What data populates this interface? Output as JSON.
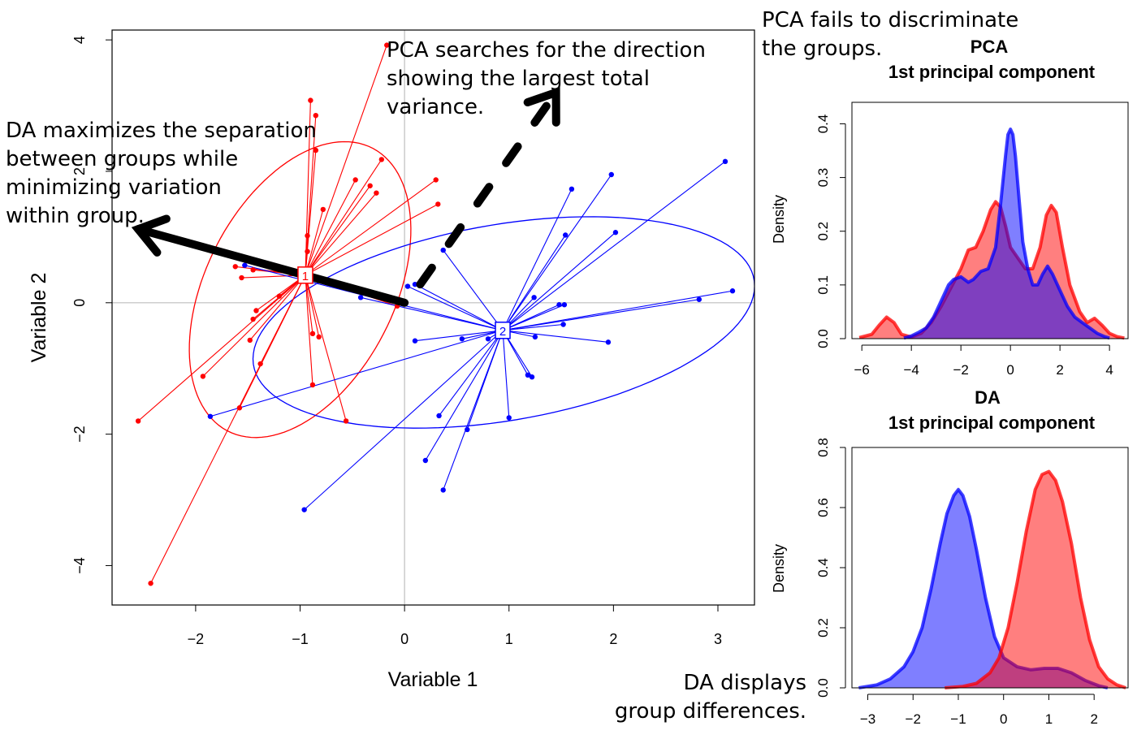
{
  "annotations": {
    "da_maximizes": [
      "DA maximizes the separation",
      "between groups while",
      "minimizing variation",
      "within group."
    ],
    "pca_searches": [
      "PCA searches for the direction",
      "showing the largest total",
      "variance."
    ],
    "pca_fails": [
      "PCA fails to discriminate",
      "the groups."
    ],
    "da_displays": [
      "DA displays",
      "group differences."
    ]
  },
  "colors": {
    "group1": "#ff0000",
    "group2": "#0000ff",
    "overlap": "#7a2fb0",
    "axis": "#000000",
    "refline": "#bebebe"
  },
  "chart_data": [
    {
      "type": "scatter",
      "xlabel": "Variable 1",
      "ylabel": "Variable 2",
      "xlim": [
        -2.8,
        3.35
      ],
      "ylim": [
        -4.6,
        4.15
      ],
      "xticks": [
        -2,
        -1,
        0,
        1,
        2,
        3
      ],
      "yticks": [
        -4,
        -2,
        0,
        2,
        4
      ],
      "reference_lines": {
        "x": 0,
        "y": 0
      },
      "series": [
        {
          "centroid_label": "1",
          "color": "#ff0000",
          "centroid": [
            -0.95,
            0.42
          ],
          "ellipse": {
            "center": [
              -1.0,
              0.2
            ],
            "semi_major": 2.3,
            "semi_minor": 0.95,
            "angle_deg": 77
          },
          "points": [
            [
              -0.17,
              3.92
            ],
            [
              -0.9,
              3.08
            ],
            [
              -0.85,
              2.85
            ],
            [
              -0.85,
              2.32
            ],
            [
              -0.22,
              2.18
            ],
            [
              -0.47,
              1.87
            ],
            [
              -0.33,
              1.78
            ],
            [
              -0.27,
              1.67
            ],
            [
              0.3,
              1.87
            ],
            [
              0.32,
              1.5
            ],
            [
              -0.78,
              1.42
            ],
            [
              -0.93,
              1.02
            ],
            [
              -0.93,
              0.78
            ],
            [
              -1.62,
              0.55
            ],
            [
              -1.56,
              0.38
            ],
            [
              -1.45,
              0.5
            ],
            [
              -1.2,
              0.1
            ],
            [
              -1.42,
              -0.12
            ],
            [
              -1.45,
              -0.25
            ],
            [
              -1.48,
              -0.57
            ],
            [
              -1.38,
              -0.93
            ],
            [
              -1.93,
              -1.12
            ],
            [
              -0.88,
              -0.47
            ],
            [
              -0.82,
              -0.52
            ],
            [
              -0.88,
              -1.25
            ],
            [
              -1.58,
              -1.6
            ],
            [
              -0.56,
              -1.8
            ],
            [
              -2.55,
              -1.8
            ],
            [
              -2.43,
              -4.27
            ],
            [
              -0.07,
              -0.05
            ]
          ]
        },
        {
          "centroid_label": "2",
          "color": "#0000ff",
          "centroid": [
            0.94,
            -0.42
          ],
          "ellipse": {
            "center": [
              0.95,
              -0.3
            ],
            "semi_major": 2.5,
            "semi_minor": 1.45,
            "angle_deg": 20
          },
          "points": [
            [
              3.07,
              2.15
            ],
            [
              1.98,
              1.95
            ],
            [
              1.6,
              1.73
            ],
            [
              2.02,
              1.07
            ],
            [
              1.54,
              1.03
            ],
            [
              0.37,
              0.8
            ],
            [
              0.1,
              0.28
            ],
            [
              0.03,
              0.25
            ],
            [
              -0.42,
              0.08
            ],
            [
              1.24,
              0.08
            ],
            [
              1.48,
              -0.03
            ],
            [
              1.53,
              -0.03
            ],
            [
              2.82,
              0.05
            ],
            [
              3.14,
              0.18
            ],
            [
              1.52,
              -0.33
            ],
            [
              1.25,
              -0.52
            ],
            [
              0.55,
              -0.55
            ],
            [
              0.8,
              -0.55
            ],
            [
              0.1,
              -0.58
            ],
            [
              1.95,
              -0.6
            ],
            [
              1.18,
              -1.1
            ],
            [
              1.22,
              -1.13
            ],
            [
              1.0,
              -1.75
            ],
            [
              0.33,
              -1.72
            ],
            [
              0.6,
              -1.93
            ],
            [
              0.2,
              -2.4
            ],
            [
              0.37,
              -2.85
            ],
            [
              -0.96,
              -3.15
            ],
            [
              -1.86,
              -1.73
            ],
            [
              -1.53,
              0.57
            ]
          ]
        }
      ],
      "arrows": {
        "da": {
          "from": [
            0.0,
            0.0
          ],
          "to": [
            -2.55,
            1.12
          ],
          "style": "solid"
        },
        "pca": {
          "from": [
            0.15,
            0.28
          ],
          "to": [
            1.45,
            3.2
          ],
          "style": "dashed"
        }
      }
    },
    {
      "type": "area",
      "title": [
        "PCA",
        "1st principal component"
      ],
      "ylabel": "Density",
      "xlim": [
        -6.4,
        4.75
      ],
      "ylim": [
        0,
        0.44
      ],
      "xticks": [
        -6,
        -4,
        -2,
        0,
        2,
        4
      ],
      "yticks": [
        0.0,
        0.1,
        0.2,
        0.3,
        0.4
      ],
      "series": [
        {
          "color": "#ff0000",
          "x": [
            -6.1,
            -5.6,
            -5.3,
            -5.0,
            -4.7,
            -4.4,
            -4.0,
            -3.6,
            -3.2,
            -2.8,
            -2.4,
            -2.0,
            -1.7,
            -1.4,
            -1.1,
            -0.8,
            -0.6,
            -0.4,
            -0.2,
            0.0,
            0.3,
            0.6,
            0.9,
            1.2,
            1.45,
            1.65,
            1.85,
            2.1,
            2.4,
            2.8,
            3.1,
            3.4,
            3.7,
            4.0,
            4.3,
            4.6
          ],
          "y": [
            0.002,
            0.008,
            0.025,
            0.04,
            0.03,
            0.008,
            0.003,
            0.01,
            0.03,
            0.06,
            0.095,
            0.13,
            0.165,
            0.17,
            0.2,
            0.24,
            0.255,
            0.245,
            0.21,
            0.17,
            0.15,
            0.13,
            0.13,
            0.17,
            0.23,
            0.248,
            0.235,
            0.17,
            0.1,
            0.05,
            0.03,
            0.038,
            0.025,
            0.01,
            0.004,
            0.001
          ]
        },
        {
          "color": "#0000ff",
          "x": [
            -4.3,
            -4.0,
            -3.7,
            -3.4,
            -3.1,
            -2.8,
            -2.5,
            -2.3,
            -2.0,
            -1.7,
            -1.5,
            -1.2,
            -0.9,
            -0.6,
            -0.4,
            -0.2,
            -0.1,
            0.0,
            0.1,
            0.2,
            0.35,
            0.5,
            0.7,
            0.9,
            1.1,
            1.3,
            1.5,
            1.7,
            2.0,
            2.3,
            2.6,
            2.9,
            3.2,
            3.5,
            3.8,
            4.0
          ],
          "y": [
            0.001,
            0.005,
            0.012,
            0.02,
            0.04,
            0.07,
            0.1,
            0.11,
            0.115,
            0.105,
            0.11,
            0.125,
            0.13,
            0.17,
            0.25,
            0.34,
            0.38,
            0.39,
            0.38,
            0.34,
            0.26,
            0.18,
            0.13,
            0.1,
            0.1,
            0.12,
            0.135,
            0.12,
            0.09,
            0.06,
            0.04,
            0.03,
            0.02,
            0.01,
            0.004,
            0.001
          ]
        }
      ]
    },
    {
      "type": "area",
      "title": [
        "DA",
        "1st principal component"
      ],
      "ylabel": "Density",
      "xlim": [
        -3.35,
        2.75
      ],
      "ylim": [
        0,
        0.8
      ],
      "xticks": [
        -3,
        -2,
        -1,
        0,
        1,
        2
      ],
      "yticks": [
        0.0,
        0.2,
        0.4,
        0.6,
        0.8
      ],
      "series": [
        {
          "color": "#0000ff",
          "x": [
            -3.2,
            -2.8,
            -2.5,
            -2.2,
            -2.0,
            -1.8,
            -1.6,
            -1.4,
            -1.25,
            -1.1,
            -1.0,
            -0.9,
            -0.75,
            -0.6,
            -0.4,
            -0.2,
            0.0,
            0.3,
            0.6,
            0.9,
            1.2,
            1.5,
            1.8,
            2.1,
            2.3
          ],
          "y": [
            0.0,
            0.01,
            0.03,
            0.07,
            0.12,
            0.2,
            0.33,
            0.48,
            0.58,
            0.64,
            0.66,
            0.64,
            0.57,
            0.46,
            0.3,
            0.17,
            0.1,
            0.07,
            0.06,
            0.065,
            0.065,
            0.05,
            0.025,
            0.007,
            0.0
          ]
        },
        {
          "color": "#ff0000",
          "x": [
            -1.3,
            -0.9,
            -0.6,
            -0.3,
            -0.1,
            0.1,
            0.3,
            0.5,
            0.7,
            0.85,
            1.0,
            1.15,
            1.3,
            1.5,
            1.7,
            1.9,
            2.1,
            2.3,
            2.5,
            2.7
          ],
          "y": [
            0.0,
            0.005,
            0.015,
            0.05,
            0.1,
            0.2,
            0.35,
            0.52,
            0.66,
            0.71,
            0.72,
            0.69,
            0.62,
            0.48,
            0.3,
            0.16,
            0.07,
            0.03,
            0.01,
            0.0
          ]
        }
      ]
    }
  ]
}
